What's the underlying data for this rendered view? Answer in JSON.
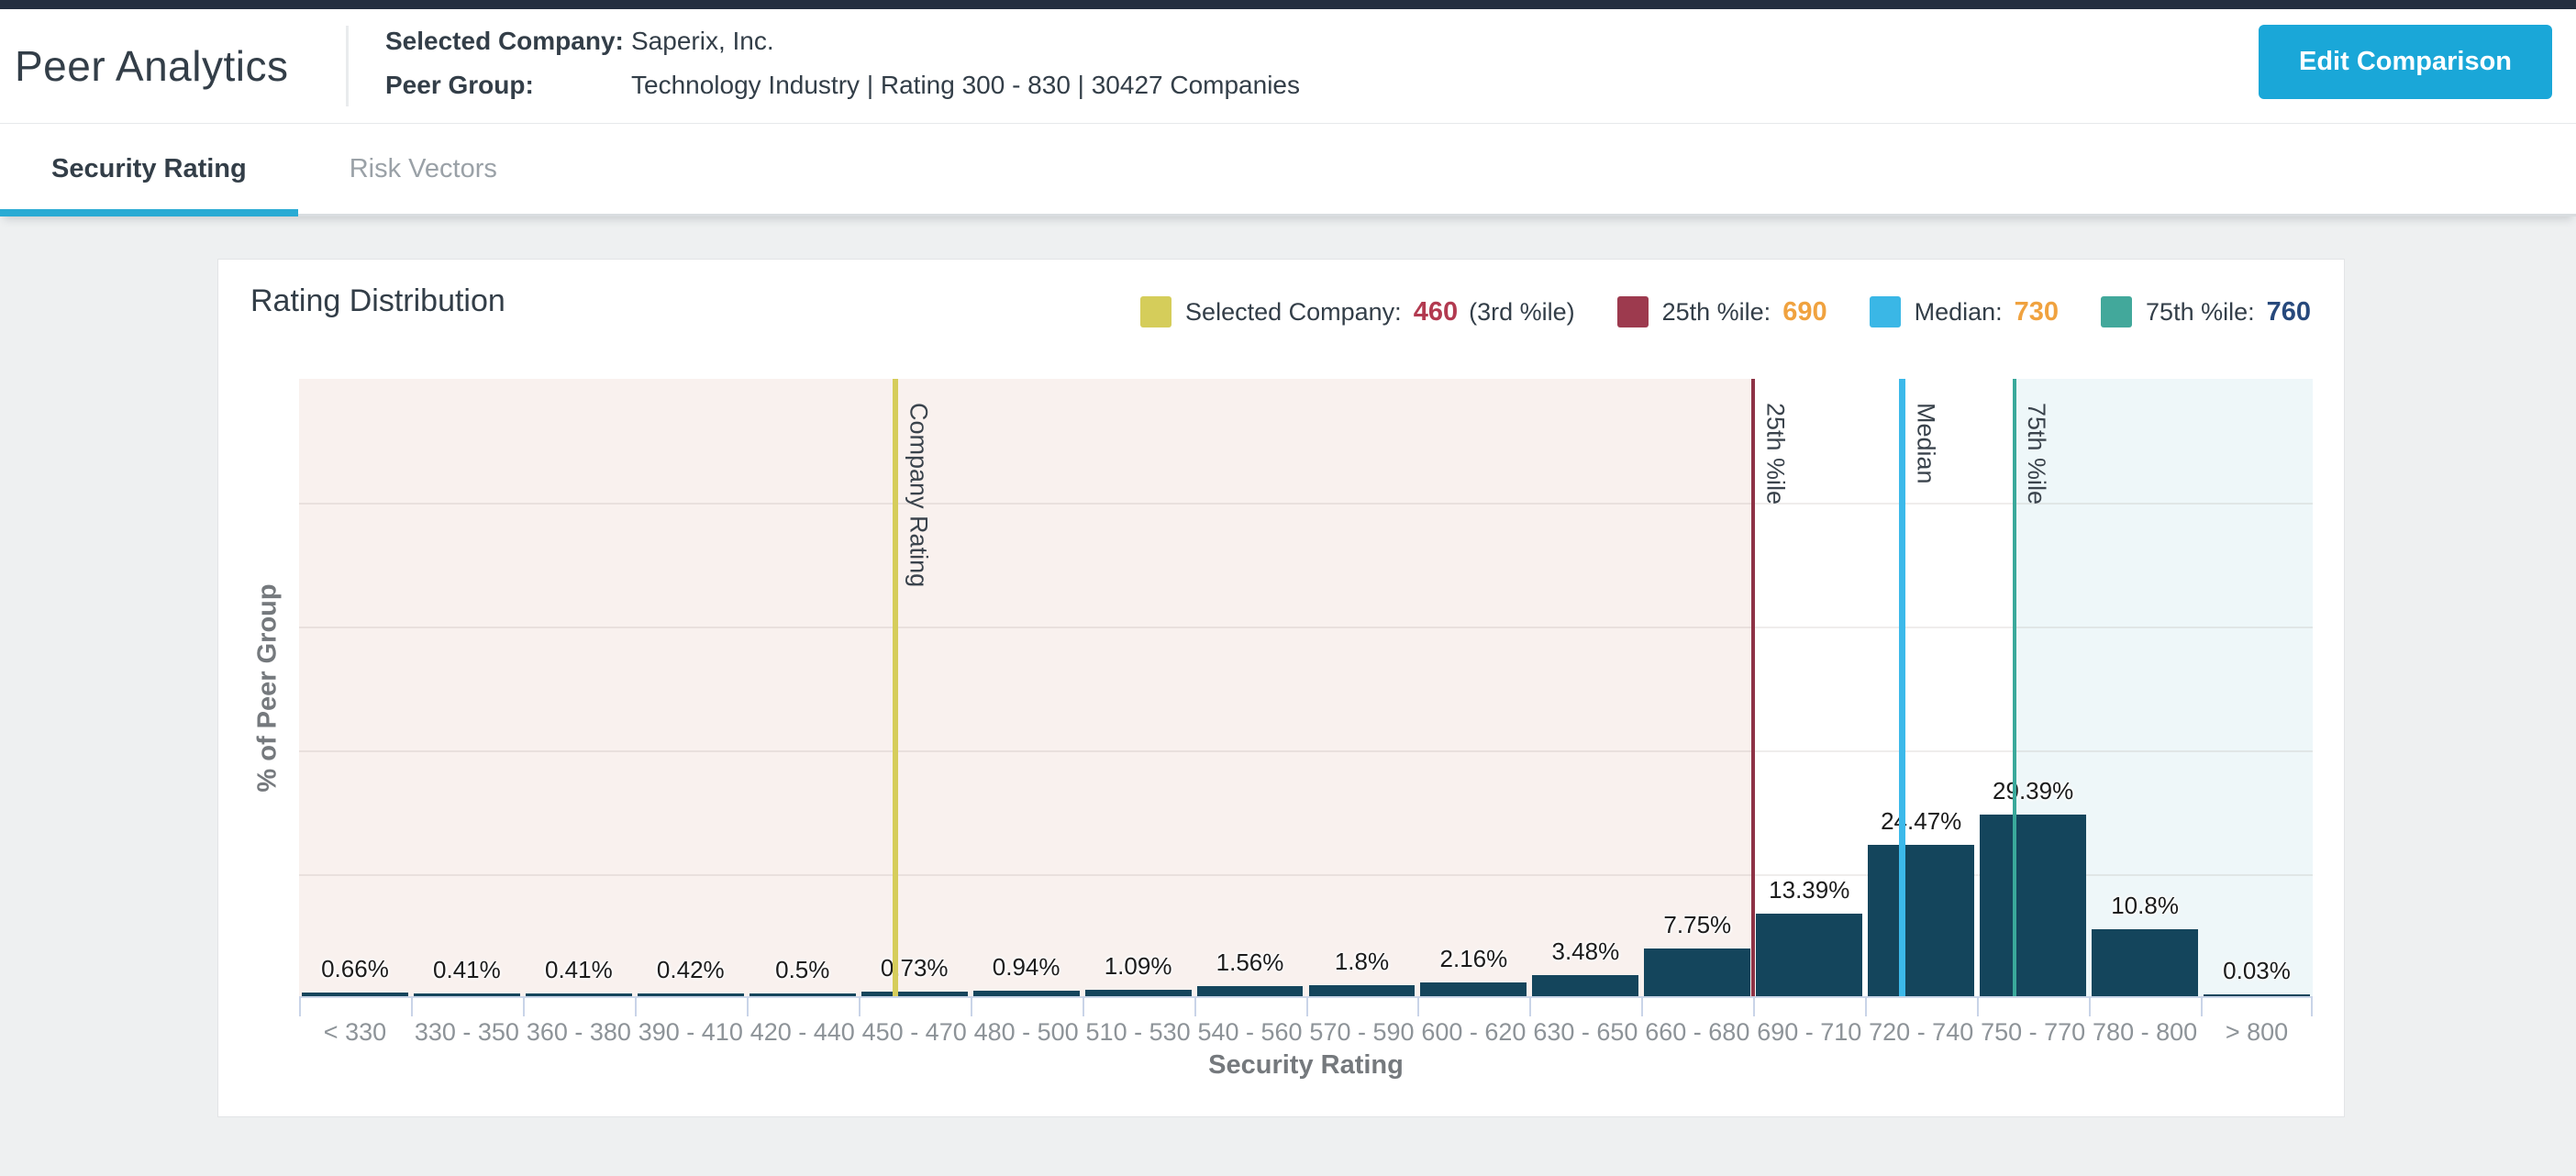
{
  "header": {
    "title": "Peer Analytics",
    "selected_company_label": "Selected Company:",
    "selected_company_value": "Saperix, Inc.",
    "peer_group_label": "Peer Group:",
    "peer_group_value": "Technology Industry | Rating 300 - 830 | 30427 Companies",
    "edit_button_label": "Edit Comparison"
  },
  "tabs": [
    {
      "label": "Security Rating",
      "active": true
    },
    {
      "label": "Risk Vectors",
      "active": false
    }
  ],
  "card": {
    "title": "Rating Distribution"
  },
  "legend": [
    {
      "swatch_color": "#d5cd5a",
      "label": "Selected Company:",
      "value": "460",
      "value_color": "#b23a50",
      "suffix": "(3rd %ile)"
    },
    {
      "swatch_color": "#9d3a4e",
      "label": "25th %ile:",
      "value": "690",
      "value_color": "#f0a23f",
      "suffix": ""
    },
    {
      "swatch_color": "#3ab7e6",
      "label": "Median:",
      "value": "730",
      "value_color": "#f0a23f",
      "suffix": ""
    },
    {
      "swatch_color": "#42a89b",
      "label": "75th %ile:",
      "value": "760",
      "value_color": "#27497c",
      "suffix": ""
    }
  ],
  "chart_data": {
    "type": "bar",
    "title": "Rating Distribution",
    "xlabel": "Security Rating",
    "ylabel": "% of Peer Group",
    "ylim": [
      0,
      100
    ],
    "gridlines_pct": [
      20,
      40,
      60,
      80
    ],
    "legend_position": "top-right",
    "categories": [
      "< 330",
      "330 - 350",
      "360 - 380",
      "390 - 410",
      "420 - 440",
      "450 - 470",
      "480 - 500",
      "510 - 530",
      "540 - 560",
      "570 - 590",
      "600 - 620",
      "630 - 650",
      "660 - 680",
      "690 - 710",
      "720 - 740",
      "750 - 770",
      "780 - 800",
      "> 800"
    ],
    "values": [
      0.66,
      0.41,
      0.41,
      0.42,
      0.5,
      0.73,
      0.94,
      1.09,
      1.56,
      1.8,
      2.16,
      3.48,
      7.75,
      13.39,
      24.47,
      29.39,
      10.8,
      0.03
    ],
    "value_labels": [
      "0.66%",
      "0.41%",
      "0.41%",
      "0.42%",
      "0.5%",
      "0.73%",
      "0.94%",
      "1.09%",
      "1.56%",
      "1.8%",
      "2.16%",
      "3.48%",
      "7.75%",
      "13.39%",
      "24.47%",
      "29.39%",
      "10.8%",
      "0.03%"
    ],
    "bar_color": "#14455c",
    "rating_axis": {
      "min": 300,
      "bin_width": 30
    },
    "markers": [
      {
        "name": "company-rating",
        "label": "Company Rating",
        "value": 460,
        "color": "#d6cd5b",
        "width": 6
      },
      {
        "name": "25th-percentile",
        "label": "25th %ile",
        "value": 690,
        "color": "#8e3346",
        "width": 4
      },
      {
        "name": "median",
        "label": "Median",
        "value": 730,
        "color": "#3cb9ea",
        "width": 7
      },
      {
        "name": "75th-percentile",
        "label": "75th %ile",
        "value": 760,
        "color": "#3aa99b",
        "width": 4
      }
    ],
    "regions": [
      {
        "from_value": 300,
        "to_value": 690,
        "color": "#f9f1ee"
      },
      {
        "from_value": 690,
        "to_value": 760,
        "color": "#ffffff"
      },
      {
        "from_value": 760,
        "to_value": 840,
        "color": "#eef7f9"
      }
    ]
  }
}
